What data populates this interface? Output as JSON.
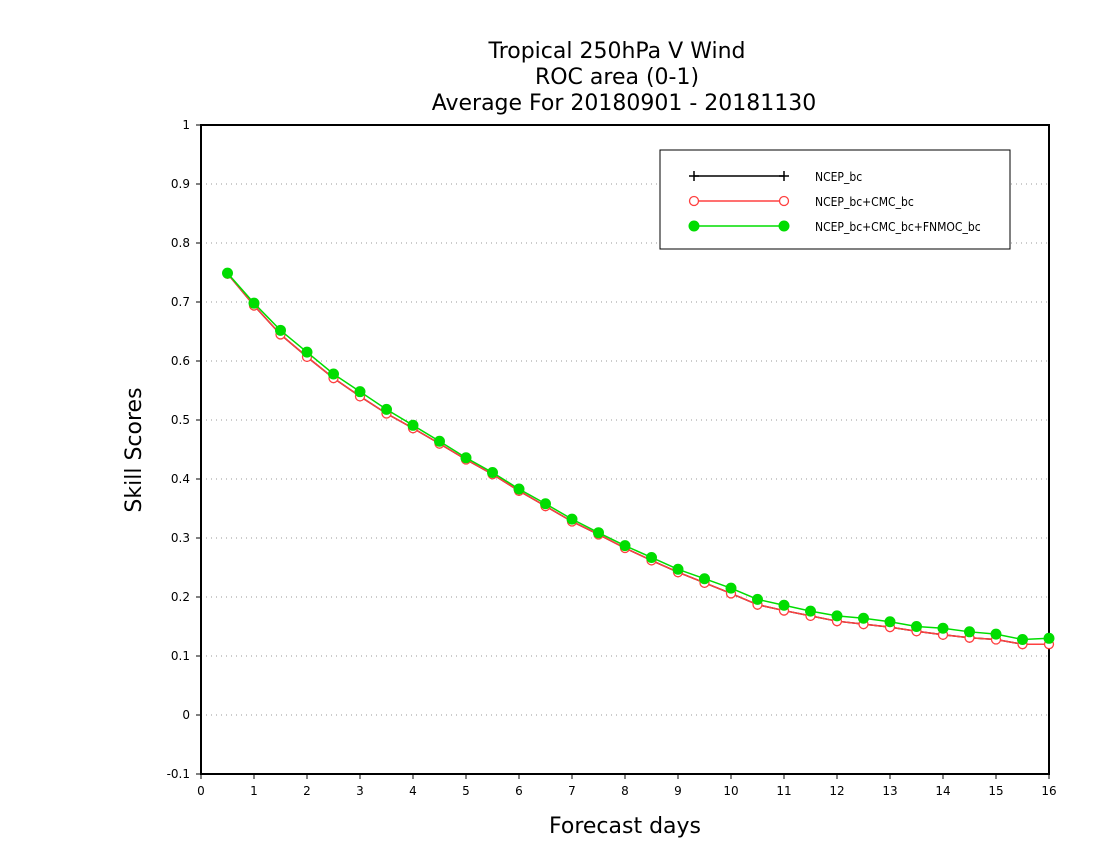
{
  "chart_data": {
    "type": "line",
    "title": [
      "Tropical 250hPa V Wind",
      "ROC area (0-1)",
      "Average For 20180901 - 20181130"
    ],
    "xlabel": "Forecast days",
    "ylabel": "Skill Scores",
    "xlim": [
      0,
      16
    ],
    "ylim": [
      -0.1,
      1
    ],
    "xticks": [
      0,
      1,
      2,
      3,
      4,
      5,
      6,
      7,
      8,
      9,
      10,
      11,
      12,
      13,
      14,
      15,
      16
    ],
    "yticks": [
      -0.1,
      0,
      0.1,
      0.2,
      0.3,
      0.4,
      0.5,
      0.6,
      0.7,
      0.8,
      0.9,
      1
    ],
    "ytick_labels": [
      "-0.1",
      "0",
      "0.1",
      "0.2",
      "0.3",
      "0.4",
      "0.5",
      "0.6",
      "0.7",
      "0.8",
      "0.9",
      "1"
    ],
    "grid": true,
    "legend_position": "top-right",
    "x": [
      0.5,
      1,
      1.5,
      2,
      2.5,
      3,
      3.5,
      4,
      4.5,
      5,
      5.5,
      6,
      6.5,
      7,
      7.5,
      8,
      8.5,
      9,
      9.5,
      10,
      10.5,
      11,
      11.5,
      12,
      12.5,
      13,
      13.5,
      14,
      14.5,
      15,
      15.5,
      16
    ],
    "series": [
      {
        "name": "NCEP_bc",
        "color": "#000000",
        "marker": "plus",
        "values": [
          0.748,
          0.694,
          0.645,
          0.607,
          0.571,
          0.54,
          0.511,
          0.486,
          0.46,
          0.433,
          0.408,
          0.38,
          0.354,
          0.328,
          0.306,
          0.283,
          0.262,
          0.242,
          0.224,
          0.206,
          0.187,
          0.177,
          0.168,
          0.159,
          0.154,
          0.149,
          0.142,
          0.136,
          0.131,
          0.128,
          0.12,
          0.12
        ]
      },
      {
        "name": "NCEP_bc+CMC_bc",
        "color": "#ff4040",
        "marker": "open-circle",
        "values": [
          0.748,
          0.694,
          0.645,
          0.607,
          0.571,
          0.54,
          0.511,
          0.486,
          0.46,
          0.433,
          0.408,
          0.38,
          0.354,
          0.328,
          0.306,
          0.283,
          0.262,
          0.242,
          0.224,
          0.206,
          0.187,
          0.177,
          0.168,
          0.159,
          0.154,
          0.149,
          0.142,
          0.136,
          0.131,
          0.128,
          0.12,
          0.12
        ]
      },
      {
        "name": "NCEP_bc+CMC_bc+FNMOC_bc",
        "color": "#00dd00",
        "marker": "filled-circle",
        "values": [
          0.749,
          0.698,
          0.652,
          0.615,
          0.578,
          0.548,
          0.518,
          0.491,
          0.464,
          0.436,
          0.411,
          0.383,
          0.358,
          0.332,
          0.309,
          0.287,
          0.267,
          0.247,
          0.231,
          0.215,
          0.196,
          0.186,
          0.176,
          0.168,
          0.164,
          0.158,
          0.15,
          0.147,
          0.141,
          0.137,
          0.128,
          0.13
        ]
      }
    ]
  }
}
